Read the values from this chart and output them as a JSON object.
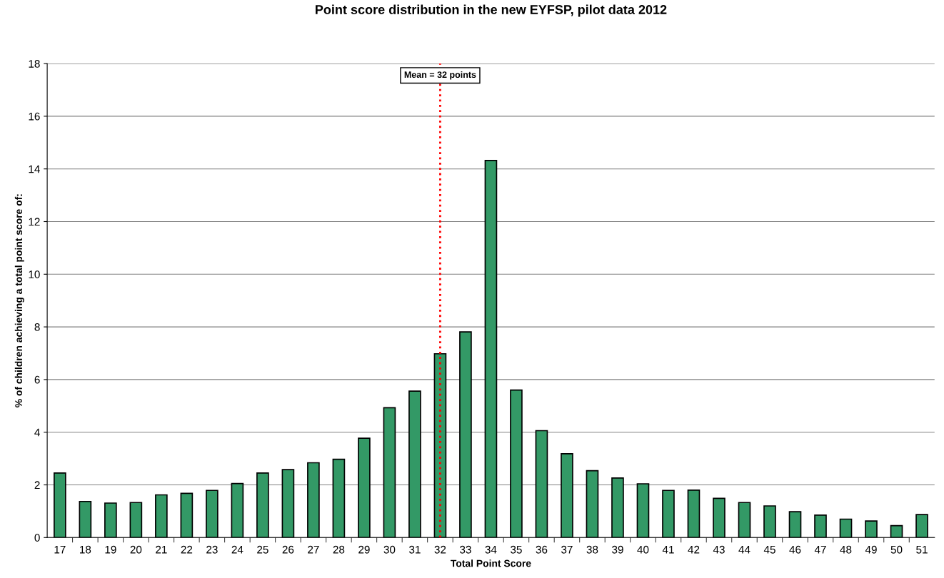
{
  "chart_data": {
    "type": "bar",
    "title": "Point score distribution in the new EYFSP, pilot data 2012",
    "xlabel": "Total Point Score",
    "ylabel": "% of children achieving a total point score of:",
    "categories": [
      "17",
      "18",
      "19",
      "20",
      "21",
      "22",
      "23",
      "24",
      "25",
      "26",
      "27",
      "28",
      "29",
      "30",
      "31",
      "32",
      "33",
      "34",
      "35",
      "36",
      "37",
      "38",
      "39",
      "40",
      "41",
      "42",
      "43",
      "44",
      "45",
      "46",
      "47",
      "48",
      "49",
      "50",
      "51"
    ],
    "values": [
      2.45,
      1.37,
      1.31,
      1.33,
      1.62,
      1.68,
      1.79,
      2.05,
      2.45,
      2.58,
      2.84,
      2.97,
      3.77,
      4.93,
      5.56,
      6.98,
      7.81,
      14.32,
      5.6,
      4.06,
      3.18,
      2.54,
      2.26,
      2.04,
      1.79,
      1.8,
      1.49,
      1.33,
      1.2,
      0.98,
      0.85,
      0.7,
      0.63,
      0.45,
      0.87
    ],
    "color": "#339966",
    "ylim": [
      0,
      18
    ],
    "yticks": [
      0,
      2,
      4,
      6,
      8,
      10,
      12,
      14,
      16,
      18
    ],
    "grid": "y",
    "ref_lines": [
      {
        "axis": "x",
        "value": "32",
        "label": "Mean = 32 points",
        "color": "#ff0000",
        "line_style": "dotted"
      }
    ]
  }
}
